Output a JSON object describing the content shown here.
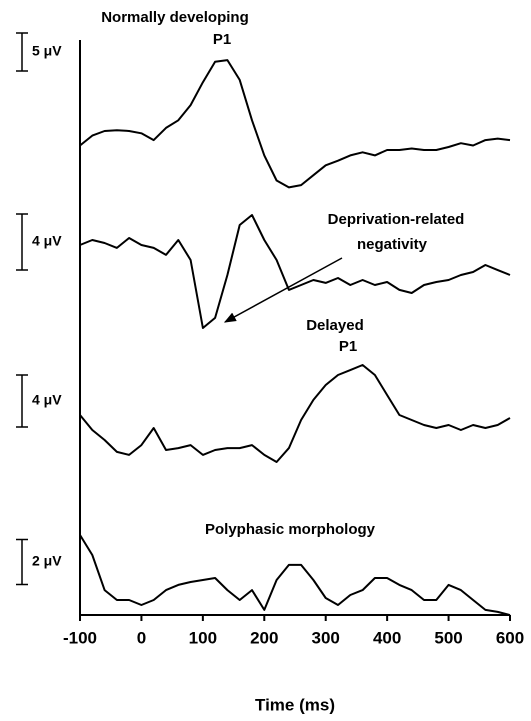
{
  "chart_data": [
    {
      "type": "line",
      "annotations": [
        "Normally developing",
        "P1"
      ],
      "scale_bar": {
        "value": 5,
        "label": "5 μV"
      },
      "x": [
        -100,
        -80,
        -60,
        -40,
        -20,
        0,
        20,
        40,
        60,
        80,
        100,
        120,
        140,
        160,
        180,
        200,
        220,
        240,
        260,
        280,
        300,
        320,
        340,
        360,
        380,
        400,
        420,
        440,
        460,
        480,
        500,
        520,
        540,
        560,
        580,
        600
      ],
      "values": [
        -2.0,
        -0.7,
        -0.1,
        0,
        -0.1,
        -0.4,
        -1.3,
        0.3,
        1.3,
        3.3,
        6.3,
        9.0,
        9.2,
        6.6,
        1.3,
        -3.3,
        -6.6,
        -7.5,
        -7.2,
        -5.9,
        -4.6,
        -4.0,
        -3.3,
        -2.9,
        -3.3,
        -2.6,
        -2.6,
        -2.4,
        -2.6,
        -2.6,
        -2.2,
        -1.7,
        -2.0,
        -1.3,
        -1.1,
        -1.3
      ],
      "xlim": [
        -100,
        600
      ],
      "ylim": [
        -9,
        12
      ],
      "color": "#000000"
    },
    {
      "type": "line",
      "annotations": [
        "Deprivation-related",
        "negativity"
      ],
      "scale_bar": {
        "value": 4,
        "label": "4 μV"
      },
      "x": [
        -100,
        -80,
        -60,
        -40,
        -20,
        0,
        20,
        40,
        60,
        80,
        100,
        120,
        140,
        160,
        180,
        200,
        220,
        240,
        260,
        280,
        300,
        320,
        340,
        360,
        380,
        400,
        420,
        440,
        460,
        480,
        500,
        520,
        540,
        560,
        580,
        600
      ],
      "values": [
        0,
        0.36,
        0.14,
        -0.21,
        0.5,
        0,
        -0.21,
        -0.71,
        0.36,
        -1.07,
        -5.93,
        -5.21,
        -2.14,
        1.43,
        2.14,
        0.36,
        -1.07,
        -3.21,
        -2.86,
        -2.5,
        -2.71,
        -2.36,
        -2.86,
        -2.5,
        -2.86,
        -2.64,
        -3.21,
        -3.43,
        -2.86,
        -2.64,
        -2.5,
        -2.14,
        -1.93,
        -1.43,
        -1.79,
        -2.14
      ],
      "xlim": [
        -100,
        600
      ],
      "ylim": [
        -7,
        4
      ],
      "color": "#000000"
    },
    {
      "type": "line",
      "annotations": [
        "Delayed",
        "P1"
      ],
      "scale_bar": {
        "value": 4,
        "label": "4 μV"
      },
      "x": [
        -100,
        -80,
        -60,
        -40,
        -20,
        0,
        20,
        40,
        60,
        80,
        100,
        120,
        140,
        160,
        180,
        200,
        220,
        240,
        260,
        280,
        300,
        320,
        340,
        360,
        380,
        400,
        420,
        440,
        460,
        480,
        500,
        520,
        540,
        560,
        580,
        600
      ],
      "values": [
        2.69,
        1.54,
        0.77,
        -0.15,
        -0.38,
        0.38,
        1.69,
        0,
        0.15,
        0.38,
        -0.38,
        0,
        0.15,
        0.15,
        0.38,
        -0.38,
        -0.92,
        0.15,
        2.31,
        3.85,
        5.0,
        5.77,
        6.15,
        6.54,
        5.77,
        4.23,
        2.69,
        2.31,
        1.92,
        1.69,
        1.92,
        1.54,
        1.92,
        1.69,
        1.92,
        2.46
      ],
      "xlim": [
        -100,
        600
      ],
      "ylim": [
        -2,
        8
      ],
      "color": "#000000"
    },
    {
      "type": "line",
      "annotations": [
        "Polyphasic morphology"
      ],
      "scale_bar": {
        "value": 2,
        "label": "2 μV"
      },
      "x": [
        -100,
        -80,
        -60,
        -40,
        -20,
        0,
        20,
        40,
        60,
        80,
        100,
        120,
        140,
        160,
        180,
        200,
        220,
        240,
        260,
        280,
        300,
        320,
        340,
        360,
        380,
        400,
        420,
        440,
        460,
        480,
        500,
        520,
        540,
        560,
        580,
        600
      ],
      "values": [
        2.89,
        2.0,
        0.44,
        0,
        0,
        -0.22,
        0,
        0.44,
        0.67,
        0.8,
        0.89,
        0.98,
        0.44,
        0,
        0.44,
        -0.44,
        0.89,
        1.56,
        1.56,
        0.89,
        0.09,
        -0.22,
        0.22,
        0.44,
        0.98,
        0.98,
        0.67,
        0.44,
        0,
        0,
        0.67,
        0.44,
        0,
        -0.44,
        -0.53,
        -0.67
      ],
      "xlim": [
        -100,
        600
      ],
      "ylim": [
        -0.7,
        3.2
      ],
      "color": "#000000",
      "xlabel": "Time (ms)",
      "xticks": [
        -100,
        0,
        100,
        200,
        300,
        400,
        500,
        600
      ]
    }
  ]
}
